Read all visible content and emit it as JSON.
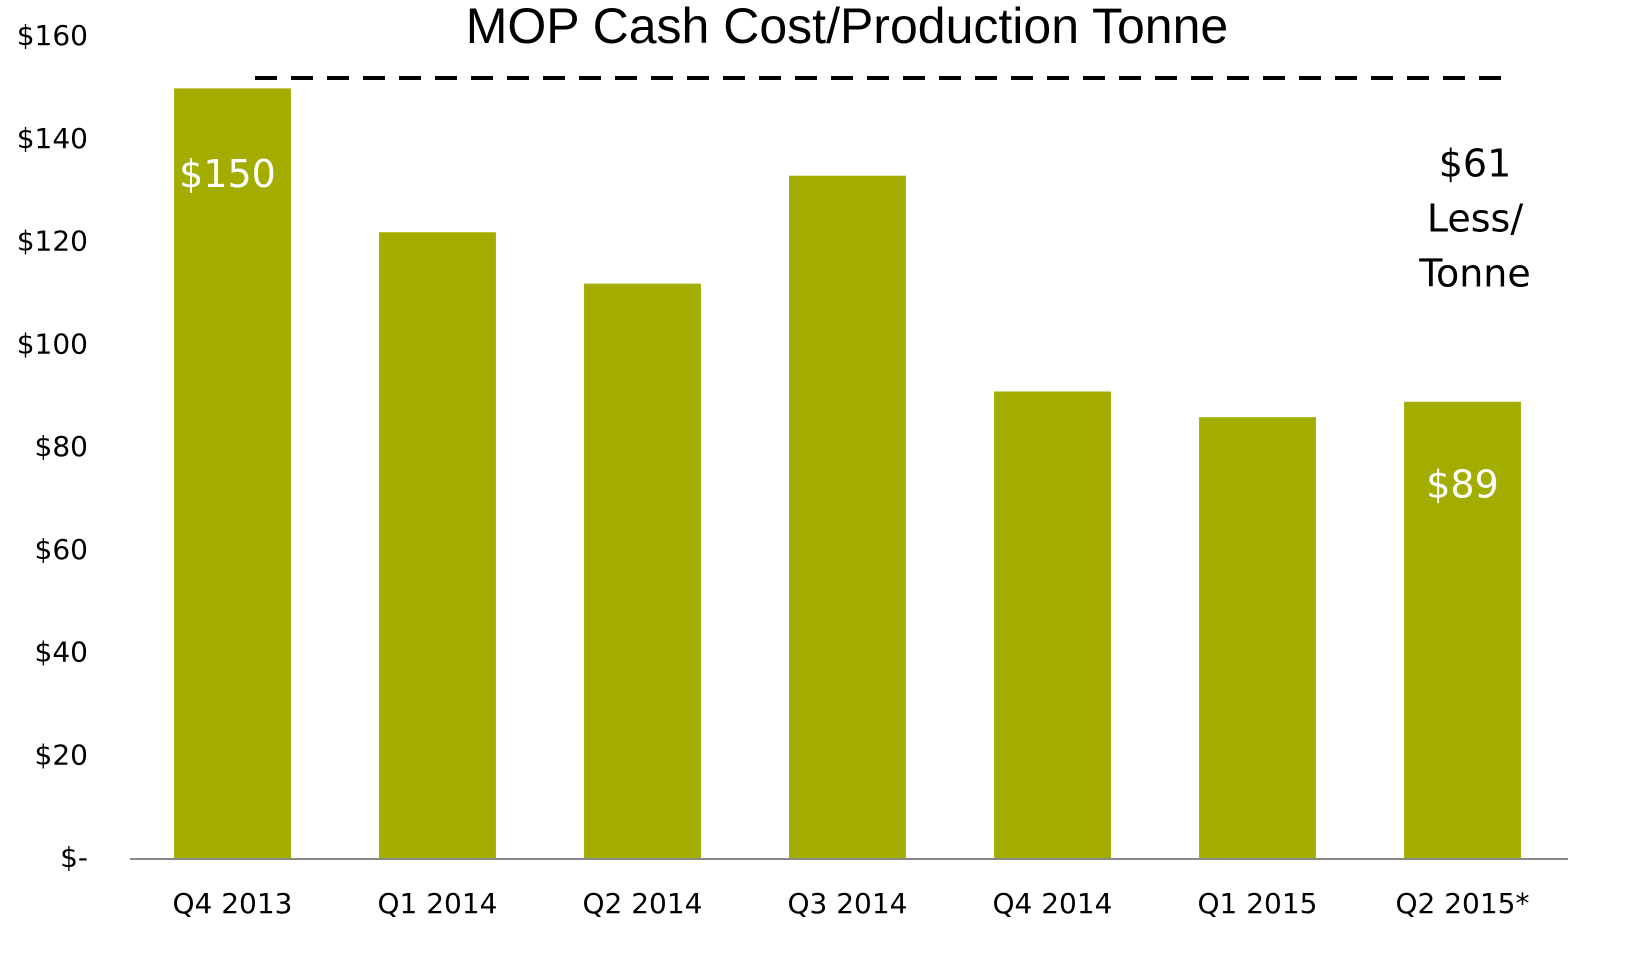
{
  "chart_data": {
    "type": "bar",
    "title": "MOP Cash Cost/Production Tonne",
    "categories": [
      "Q4 2013",
      "Q1 2014",
      "Q2 2014",
      "Q3 2014",
      "Q4 2014",
      "Q1 2015",
      "Q2 2015*"
    ],
    "values": [
      150,
      122,
      112,
      133,
      91,
      86,
      89
    ],
    "value_labels": [
      "$150",
      null,
      null,
      null,
      null,
      null,
      "$89"
    ],
    "color": "#a3ad00",
    "ylim": [
      0,
      160
    ],
    "yticks": [
      {
        "value": 0,
        "label": "$-"
      },
      {
        "value": 20,
        "label": "$20"
      },
      {
        "value": 40,
        "label": "$40"
      },
      {
        "value": 60,
        "label": "$60"
      },
      {
        "value": 80,
        "label": "$80"
      },
      {
        "value": 100,
        "label": "$100"
      },
      {
        "value": 120,
        "label": "$120"
      },
      {
        "value": 140,
        "label": "$140"
      },
      {
        "value": 160,
        "label": "$160"
      }
    ],
    "grid": false,
    "annotation": [
      "$61",
      "Less/",
      "Tonne"
    ]
  }
}
